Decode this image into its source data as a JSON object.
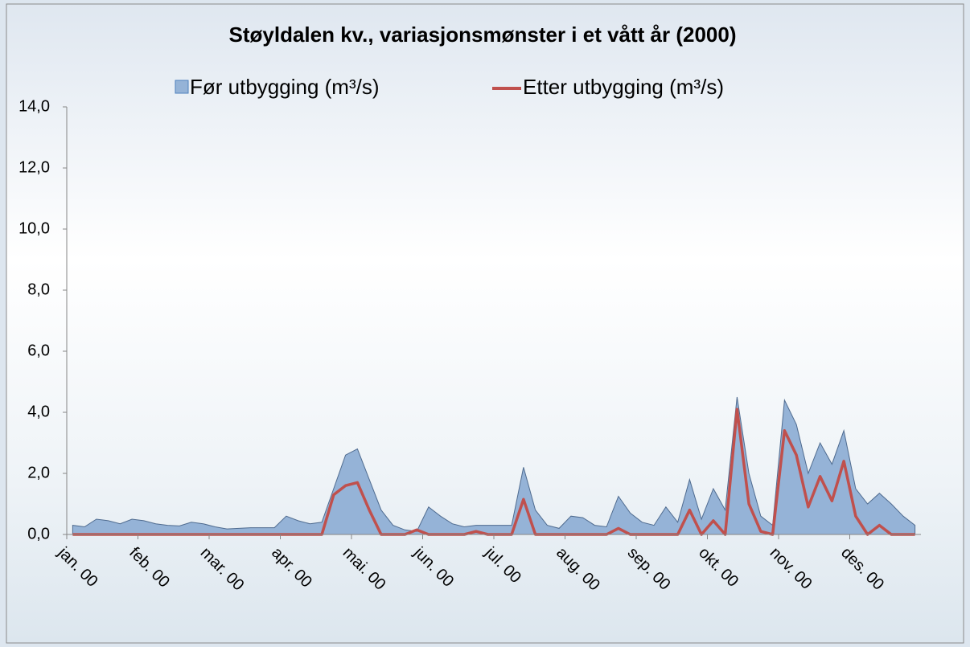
{
  "chart_data": {
    "type": "area_line",
    "title": "Støyldalen kv., variasjonsmønster i et vått år (2000)",
    "categories": [
      "jan. 00",
      null,
      null,
      null,
      null,
      null,
      "feb. 00",
      null,
      null,
      null,
      null,
      null,
      "mar. 00",
      null,
      null,
      null,
      null,
      null,
      "apr. 00",
      null,
      null,
      null,
      null,
      null,
      "mai. 00",
      null,
      null,
      null,
      null,
      null,
      "jun. 00",
      null,
      null,
      null,
      null,
      null,
      "jul. 00",
      null,
      null,
      null,
      null,
      null,
      "aug. 00",
      null,
      null,
      null,
      null,
      null,
      "sep. 00",
      null,
      null,
      null,
      null,
      null,
      "okt. 00",
      null,
      null,
      null,
      null,
      null,
      "nov. 00",
      null,
      null,
      null,
      null,
      null,
      "des. 00",
      null,
      null,
      null,
      null,
      null
    ],
    "series": [
      {
        "name": "Før utbygging (m³/s)",
        "color": "#95b3d7",
        "values": [
          0.3,
          0.25,
          0.5,
          0.45,
          0.35,
          0.5,
          0.45,
          0.35,
          0.3,
          0.28,
          0.4,
          0.35,
          0.25,
          0.18,
          0.2,
          0.22,
          0.22,
          0.22,
          0.6,
          0.45,
          0.35,
          0.4,
          1.5,
          2.6,
          2.8,
          1.8,
          0.8,
          0.3,
          0.15,
          0.1,
          0.9,
          0.6,
          0.35,
          0.25,
          0.3,
          0.3,
          0.3,
          0.3,
          2.2,
          0.8,
          0.3,
          0.2,
          0.6,
          0.55,
          0.3,
          0.25,
          1.25,
          0.7,
          0.4,
          0.3,
          0.9,
          0.4,
          1.8,
          0.5,
          1.5,
          0.8,
          4.5,
          2.0,
          0.6,
          0.3,
          4.4,
          3.6,
          2.0,
          3.0,
          2.3,
          3.4,
          1.5,
          1.0,
          1.35,
          1.0,
          0.6,
          0.3
        ]
      },
      {
        "name": "Etter utbygging (m³/s)",
        "color": "#c0504d",
        "values": [
          0,
          0,
          0,
          0,
          0,
          0,
          0,
          0,
          0,
          0,
          0,
          0,
          0,
          0,
          0,
          0,
          0,
          0,
          0,
          0,
          0,
          0,
          1.3,
          1.6,
          1.7,
          0.8,
          0,
          0,
          0,
          0.15,
          0,
          0,
          0,
          0,
          0.1,
          0,
          0,
          0,
          1.15,
          0,
          0,
          0,
          0,
          0,
          0,
          0,
          0.2,
          0,
          0,
          0,
          0,
          0,
          0.8,
          0,
          0.45,
          0,
          4.1,
          1.0,
          0.1,
          0,
          3.4,
          2.6,
          0.9,
          1.9,
          1.1,
          2.4,
          0.6,
          0,
          0.3,
          0,
          0,
          0
        ]
      }
    ],
    "ylim": [
      0,
      14
    ],
    "yticks": [
      {
        "value": 0,
        "label": "0,0"
      },
      {
        "value": 2,
        "label": "2,0"
      },
      {
        "value": 4,
        "label": "4,0"
      },
      {
        "value": 6,
        "label": "6,0"
      },
      {
        "value": 8,
        "label": "8,0"
      },
      {
        "value": 10,
        "label": "10,0"
      },
      {
        "value": 12,
        "label": "12,0"
      },
      {
        "value": 14,
        "label": "14,0"
      }
    ]
  }
}
